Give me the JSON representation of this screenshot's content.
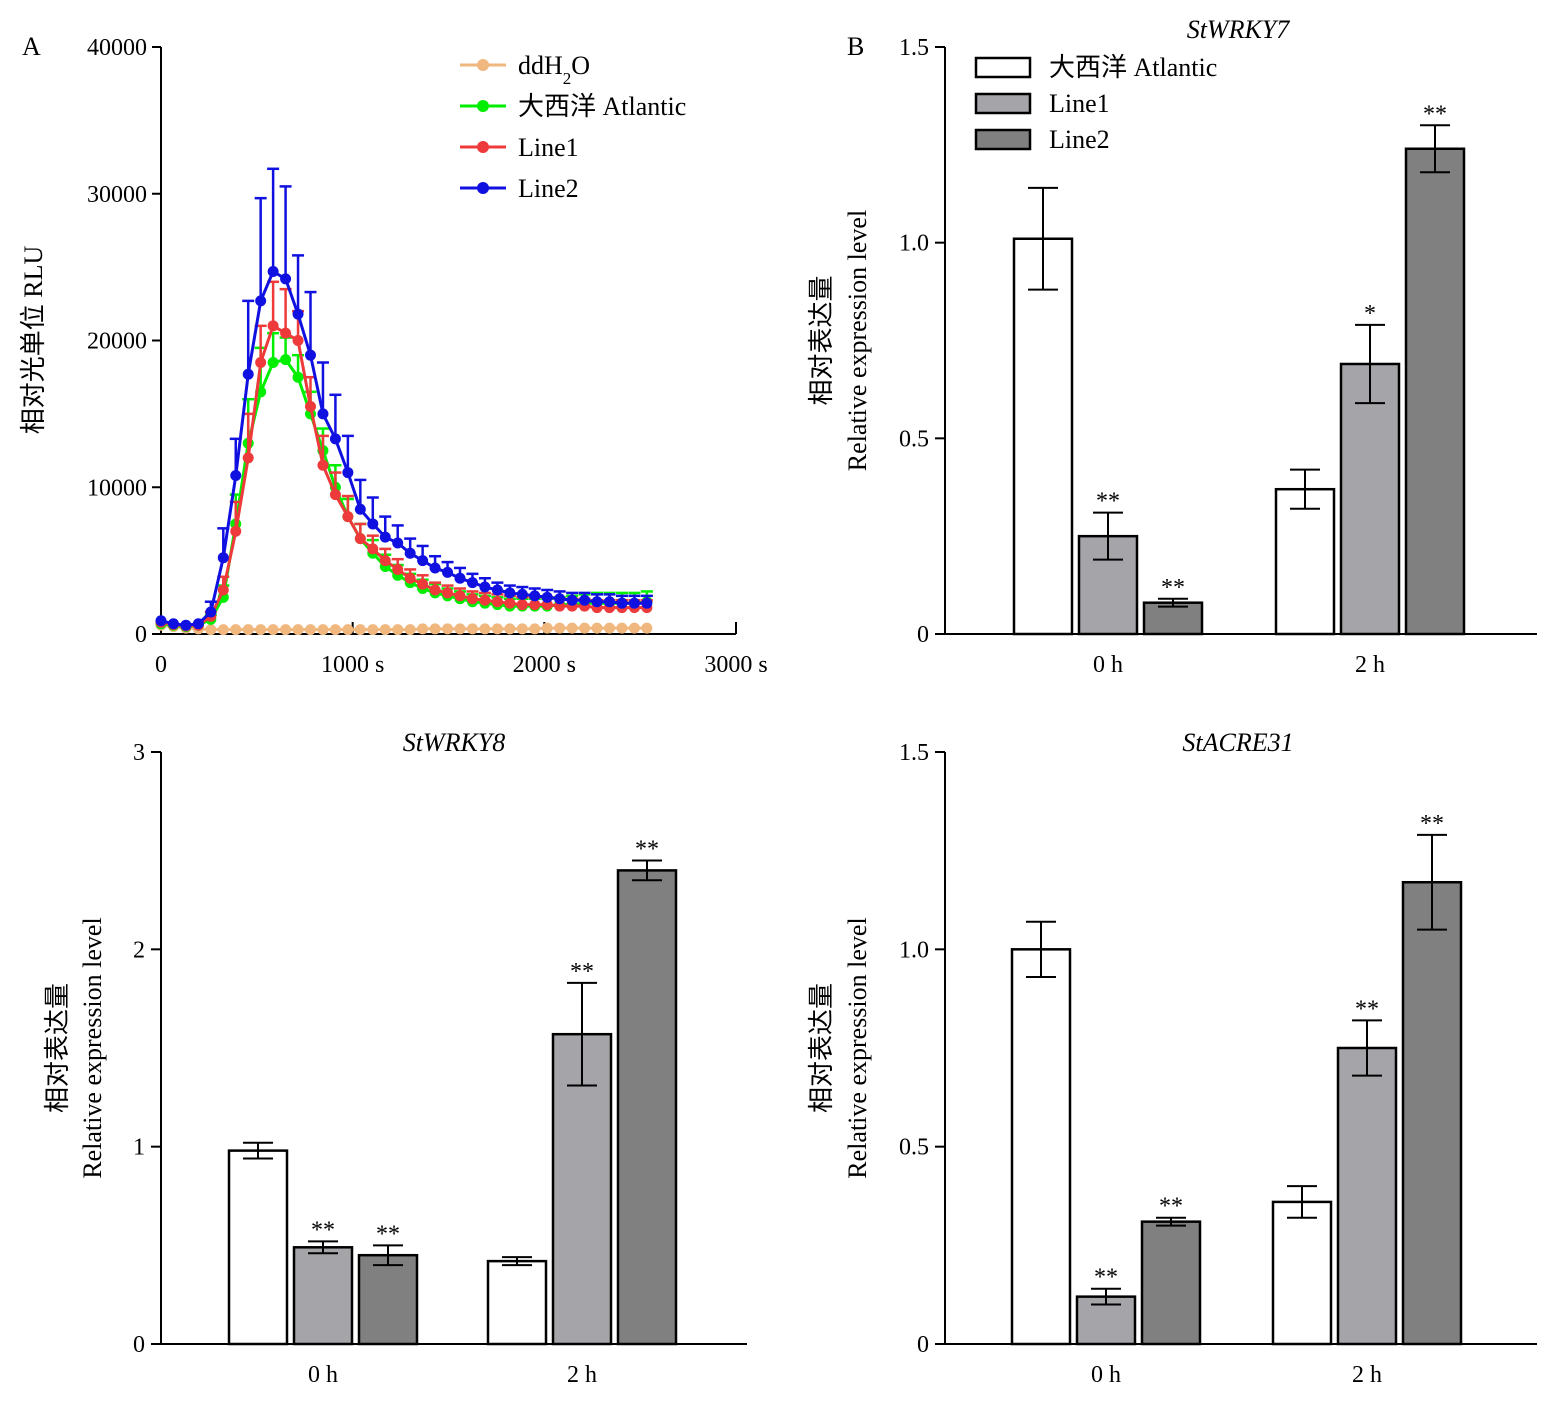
{
  "figure": {
    "panel_a_label": "A",
    "panel_b_label": "B"
  },
  "chart_data": [
    {
      "id": "A",
      "type": "line",
      "title": "",
      "ylabel": "相对光单位 RLU",
      "xlabel": "",
      "xlim": [
        0,
        3000
      ],
      "ylim": [
        0,
        40000
      ],
      "x_ticks": [
        0,
        1000,
        2000,
        3000
      ],
      "x_tick_labels": [
        "0",
        "1000 s",
        "2000 s",
        "3000 s"
      ],
      "y_ticks": [
        0,
        10000,
        20000,
        30000,
        40000
      ],
      "y_tick_labels": [
        "0",
        "10000",
        "20000",
        "30000",
        "40000"
      ],
      "grid": false,
      "legend_position": "top-center",
      "x": [
        0,
        65,
        130,
        195,
        260,
        325,
        390,
        455,
        520,
        585,
        650,
        715,
        780,
        845,
        910,
        975,
        1040,
        1105,
        1170,
        1235,
        1300,
        1365,
        1430,
        1495,
        1560,
        1625,
        1690,
        1755,
        1820,
        1885,
        1950,
        2015,
        2080,
        2145,
        2210,
        2275,
        2340,
        2405,
        2470,
        2535
      ],
      "series": [
        {
          "name": "ddH₂O",
          "legend_main": "ddH",
          "legend_sub": "2",
          "legend_tail": "O",
          "color": "#f0b77f",
          "values": [
            600,
            500,
            400,
            350,
            300,
            300,
            300,
            300,
            300,
            300,
            300,
            300,
            300,
            300,
            300,
            300,
            300,
            300,
            300,
            300,
            300,
            350,
            350,
            350,
            350,
            350,
            350,
            350,
            350,
            350,
            350,
            400,
            400,
            400,
            400,
            400,
            400,
            400,
            400,
            400
          ],
          "errors": [
            0,
            0,
            0,
            0,
            0,
            0,
            0,
            0,
            0,
            0,
            0,
            0,
            0,
            0,
            0,
            0,
            0,
            0,
            0,
            0,
            0,
            0,
            0,
            0,
            0,
            0,
            0,
            0,
            0,
            0,
            0,
            0,
            0,
            0,
            0,
            0,
            0,
            0,
            0,
            0
          ]
        },
        {
          "name": "大西洋 Atlantic",
          "color": "#00ee00",
          "values": [
            700,
            600,
            500,
            600,
            1000,
            2500,
            7500,
            13000,
            16500,
            18500,
            18700,
            17500,
            15000,
            12500,
            10000,
            8000,
            6500,
            5500,
            4600,
            4000,
            3500,
            3100,
            2800,
            2600,
            2400,
            2200,
            2100,
            2000,
            1900,
            1900,
            1900,
            1900,
            2000,
            2000,
            2100,
            2100,
            2100,
            2100,
            2100,
            2200
          ],
          "errors": [
            0,
            0,
            0,
            0,
            300,
            800,
            2000,
            3000,
            3000,
            2000,
            1500,
            1500,
            1500,
            1500,
            1500,
            1200,
            1000,
            900,
            800,
            700,
            600,
            600,
            600,
            500,
            500,
            500,
            500,
            500,
            500,
            500,
            500,
            500,
            500,
            600,
            600,
            700,
            700,
            700,
            700,
            700
          ]
        },
        {
          "name": "Line1",
          "color": "#ee3a3a",
          "values": [
            800,
            650,
            550,
            600,
            1200,
            3000,
            7000,
            12000,
            18500,
            21000,
            20500,
            20000,
            15500,
            11500,
            9500,
            8000,
            6500,
            5800,
            5000,
            4400,
            3800,
            3400,
            3000,
            2800,
            2600,
            2400,
            2300,
            2200,
            2100,
            2000,
            2000,
            2000,
            1900,
            1900,
            1900,
            1800,
            1800,
            1800,
            1800,
            1800
          ],
          "errors": [
            0,
            0,
            0,
            0,
            300,
            900,
            2000,
            3000,
            2500,
            3000,
            3000,
            2000,
            2000,
            2000,
            1500,
            1400,
            1000,
            900,
            800,
            700,
            600,
            600,
            500,
            500,
            500,
            500,
            500,
            500,
            500,
            500,
            500,
            500,
            500,
            500,
            500,
            500,
            500,
            500,
            500,
            500
          ]
        },
        {
          "name": "Line2",
          "color": "#1010e0",
          "values": [
            900,
            700,
            600,
            700,
            1500,
            5200,
            10800,
            17700,
            22700,
            24700,
            24200,
            21800,
            19000,
            15000,
            13300,
            11000,
            8500,
            7500,
            6600,
            6200,
            5500,
            5000,
            4500,
            4200,
            3800,
            3500,
            3200,
            3000,
            2800,
            2700,
            2600,
            2500,
            2400,
            2300,
            2300,
            2200,
            2200,
            2100,
            2100,
            2100
          ],
          "errors": [
            0,
            0,
            0,
            0,
            700,
            2000,
            2500,
            5000,
            7000,
            7000,
            6300,
            4000,
            4300,
            3500,
            3000,
            2500,
            2000,
            1800,
            1400,
            1200,
            1000,
            1000,
            800,
            700,
            700,
            600,
            600,
            500,
            500,
            500,
            500,
            500,
            500,
            500,
            500,
            500,
            500,
            500,
            500,
            500
          ]
        }
      ]
    },
    {
      "id": "B",
      "type": "bar",
      "title": "StWRKY7",
      "ylabel_cn": "相对表达量",
      "ylabel_en": "Relative expression level",
      "ylim": [
        0,
        1.5
      ],
      "y_ticks": [
        0,
        0.5,
        1.0,
        1.5
      ],
      "y_tick_labels": [
        "0",
        "0.5",
        "1.0",
        "1.5"
      ],
      "categories": [
        "0 h",
        "2 h"
      ],
      "legend_position": "top-left",
      "series": [
        {
          "name": "大西洋 Atlantic",
          "color": "#ffffff",
          "values": [
            1.01,
            0.37
          ],
          "errors": [
            0.13,
            0.05
          ],
          "sig": [
            "",
            ""
          ]
        },
        {
          "name": "Line1",
          "color": "#a5a5a9",
          "values": [
            0.25,
            0.69
          ],
          "errors": [
            0.06,
            0.1
          ],
          "sig": [
            "**",
            "*"
          ]
        },
        {
          "name": "Line2",
          "color": "#808080",
          "values": [
            0.08,
            1.24
          ],
          "errors": [
            0.01,
            0.06
          ],
          "sig": [
            "**",
            "**"
          ]
        }
      ]
    },
    {
      "id": "C",
      "type": "bar",
      "title": "StWRKY8",
      "ylabel_cn": "相对表达量",
      "ylabel_en": "Relative expression level",
      "ylim": [
        0,
        3
      ],
      "y_ticks": [
        0,
        1,
        2,
        3
      ],
      "y_tick_labels": [
        "0",
        "1",
        "2",
        "3"
      ],
      "categories": [
        "0 h",
        "2 h"
      ],
      "series": [
        {
          "name": "大西洋 Atlantic",
          "color": "#ffffff",
          "values": [
            0.98,
            0.42
          ],
          "errors": [
            0.04,
            0.02
          ],
          "sig": [
            "",
            ""
          ]
        },
        {
          "name": "Line1",
          "color": "#a5a5a9",
          "values": [
            0.49,
            1.57
          ],
          "errors": [
            0.03,
            0.26
          ],
          "sig": [
            "**",
            "**"
          ]
        },
        {
          "name": "Line2",
          "color": "#808080",
          "values": [
            0.45,
            2.4
          ],
          "errors": [
            0.05,
            0.05
          ],
          "sig": [
            "**",
            "**"
          ]
        }
      ]
    },
    {
      "id": "D",
      "type": "bar",
      "title": "StACRE31",
      "ylabel_cn": "相对表达量",
      "ylabel_en": "Relative expression level",
      "ylim": [
        0,
        1.5
      ],
      "y_ticks": [
        0,
        0.5,
        1.0,
        1.5
      ],
      "y_tick_labels": [
        "0",
        "0.5",
        "1.0",
        "1.5"
      ],
      "categories": [
        "0 h",
        "2 h"
      ],
      "series": [
        {
          "name": "大西洋 Atlantic",
          "color": "#ffffff",
          "values": [
            1.0,
            0.36
          ],
          "errors": [
            0.07,
            0.04
          ],
          "sig": [
            "",
            ""
          ]
        },
        {
          "name": "Line1",
          "color": "#a5a5a9",
          "values": [
            0.12,
            0.75
          ],
          "errors": [
            0.02,
            0.07
          ],
          "sig": [
            "**",
            "**"
          ]
        },
        {
          "name": "Line2",
          "color": "#808080",
          "values": [
            0.31,
            1.17
          ],
          "errors": [
            0.01,
            0.12
          ],
          "sig": [
            "**",
            "**"
          ]
        }
      ]
    }
  ]
}
